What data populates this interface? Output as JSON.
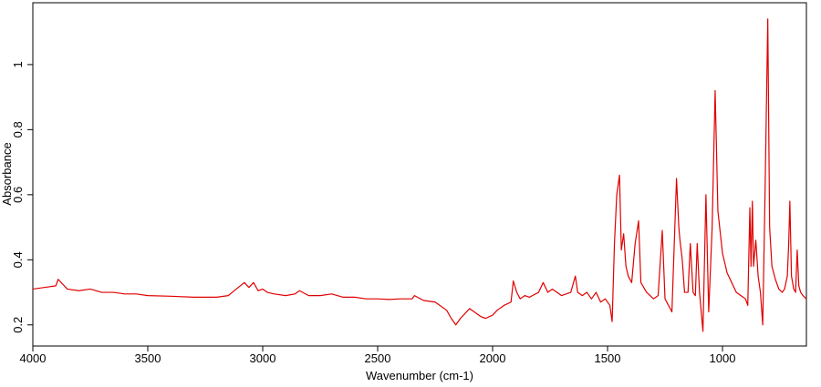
{
  "chart_data": {
    "type": "line",
    "xlabel": "Wavenumber (cm-1)",
    "ylabel": "Absorbance",
    "xlim": [
      4000,
      635
    ],
    "ylim": [
      0.135,
      1.19
    ],
    "xticks": [
      4000,
      3500,
      3000,
      2500,
      2000,
      1500,
      1000
    ],
    "yticks": [
      0.2,
      0.4,
      0.6,
      0.8,
      1.0
    ],
    "x": [
      4000,
      3950,
      3900,
      3890,
      3850,
      3800,
      3750,
      3700,
      3650,
      3600,
      3550,
      3500,
      3400,
      3300,
      3200,
      3150,
      3080,
      3060,
      3040,
      3020,
      3000,
      2980,
      2950,
      2900,
      2860,
      2840,
      2800,
      2750,
      2700,
      2650,
      2600,
      2550,
      2500,
      2450,
      2400,
      2350,
      2340,
      2300,
      2250,
      2200,
      2180,
      2160,
      2140,
      2100,
      2080,
      2050,
      2030,
      2000,
      1980,
      1950,
      1920,
      1910,
      1895,
      1880,
      1860,
      1840,
      1800,
      1780,
      1760,
      1740,
      1700,
      1660,
      1640,
      1630,
      1610,
      1590,
      1570,
      1550,
      1530,
      1510,
      1490,
      1480,
      1470,
      1460,
      1448,
      1440,
      1430,
      1420,
      1410,
      1395,
      1380,
      1365,
      1355,
      1330,
      1300,
      1280,
      1262,
      1250,
      1235,
      1220,
      1200,
      1190,
      1185,
      1175,
      1165,
      1150,
      1140,
      1128,
      1118,
      1110,
      1100,
      1085,
      1072,
      1060,
      1045,
      1032,
      1020,
      1000,
      980,
      960,
      940,
      920,
      900,
      890,
      881,
      876,
      870,
      865,
      855,
      845,
      835,
      825,
      815,
      803,
      795,
      785,
      770,
      755,
      740,
      730,
      718,
      712,
      707,
      700,
      690,
      682,
      675,
      668,
      660,
      650,
      635
    ],
    "series": [
      {
        "name": "Absorbance",
        "color": "#e00000",
        "values": [
          0.31,
          0.315,
          0.32,
          0.34,
          0.31,
          0.305,
          0.31,
          0.3,
          0.3,
          0.295,
          0.295,
          0.29,
          0.288,
          0.285,
          0.285,
          0.29,
          0.33,
          0.315,
          0.33,
          0.305,
          0.31,
          0.3,
          0.295,
          0.29,
          0.295,
          0.305,
          0.29,
          0.29,
          0.295,
          0.285,
          0.285,
          0.28,
          0.28,
          0.278,
          0.28,
          0.28,
          0.29,
          0.275,
          0.27,
          0.245,
          0.22,
          0.2,
          0.22,
          0.25,
          0.24,
          0.225,
          0.22,
          0.23,
          0.245,
          0.26,
          0.27,
          0.335,
          0.3,
          0.28,
          0.29,
          0.285,
          0.3,
          0.33,
          0.3,
          0.31,
          0.29,
          0.3,
          0.35,
          0.3,
          0.29,
          0.3,
          0.28,
          0.3,
          0.27,
          0.28,
          0.26,
          0.21,
          0.45,
          0.6,
          0.66,
          0.43,
          0.48,
          0.38,
          0.35,
          0.33,
          0.45,
          0.52,
          0.33,
          0.3,
          0.28,
          0.29,
          0.49,
          0.28,
          0.26,
          0.24,
          0.65,
          0.5,
          0.46,
          0.4,
          0.3,
          0.3,
          0.45,
          0.3,
          0.29,
          0.45,
          0.3,
          0.18,
          0.6,
          0.24,
          0.5,
          0.92,
          0.55,
          0.42,
          0.36,
          0.33,
          0.3,
          0.29,
          0.28,
          0.26,
          0.56,
          0.38,
          0.58,
          0.38,
          0.46,
          0.35,
          0.3,
          0.2,
          0.6,
          1.14,
          0.5,
          0.38,
          0.34,
          0.31,
          0.3,
          0.31,
          0.35,
          0.45,
          0.58,
          0.35,
          0.31,
          0.3,
          0.43,
          0.32,
          0.3,
          0.29,
          0.28
        ]
      }
    ]
  }
}
